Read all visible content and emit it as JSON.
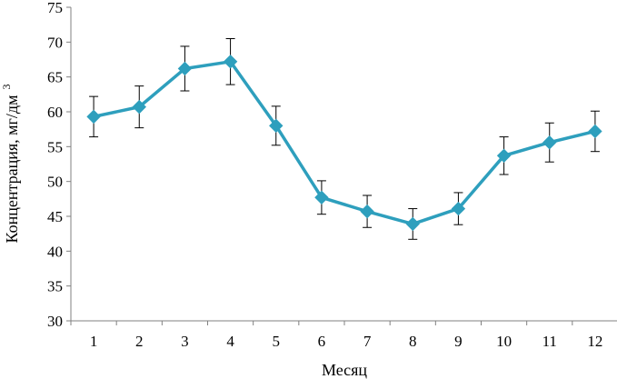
{
  "chart_data": {
    "type": "line",
    "xlabel": "Месяц",
    "ylabel": "Концентрация, мг/дм",
    "ylabel_superscript": "3",
    "ylim": [
      30,
      75
    ],
    "yticks": [
      30,
      35,
      40,
      45,
      50,
      55,
      60,
      65,
      70,
      75
    ],
    "categories": [
      "1",
      "2",
      "3",
      "4",
      "5",
      "6",
      "7",
      "8",
      "9",
      "10",
      "11",
      "12"
    ],
    "grid": false,
    "legend": "none",
    "series": [
      {
        "values": [
          59.3,
          60.7,
          66.2,
          67.2,
          58.0,
          47.7,
          45.7,
          43.9,
          46.1,
          53.7,
          55.6,
          57.2
        ],
        "error": [
          2.9,
          3.0,
          3.2,
          3.3,
          2.8,
          2.4,
          2.3,
          2.2,
          2.3,
          2.7,
          2.8,
          2.9
        ],
        "color": "#2e9fbd",
        "marker": "diamond"
      }
    ]
  }
}
